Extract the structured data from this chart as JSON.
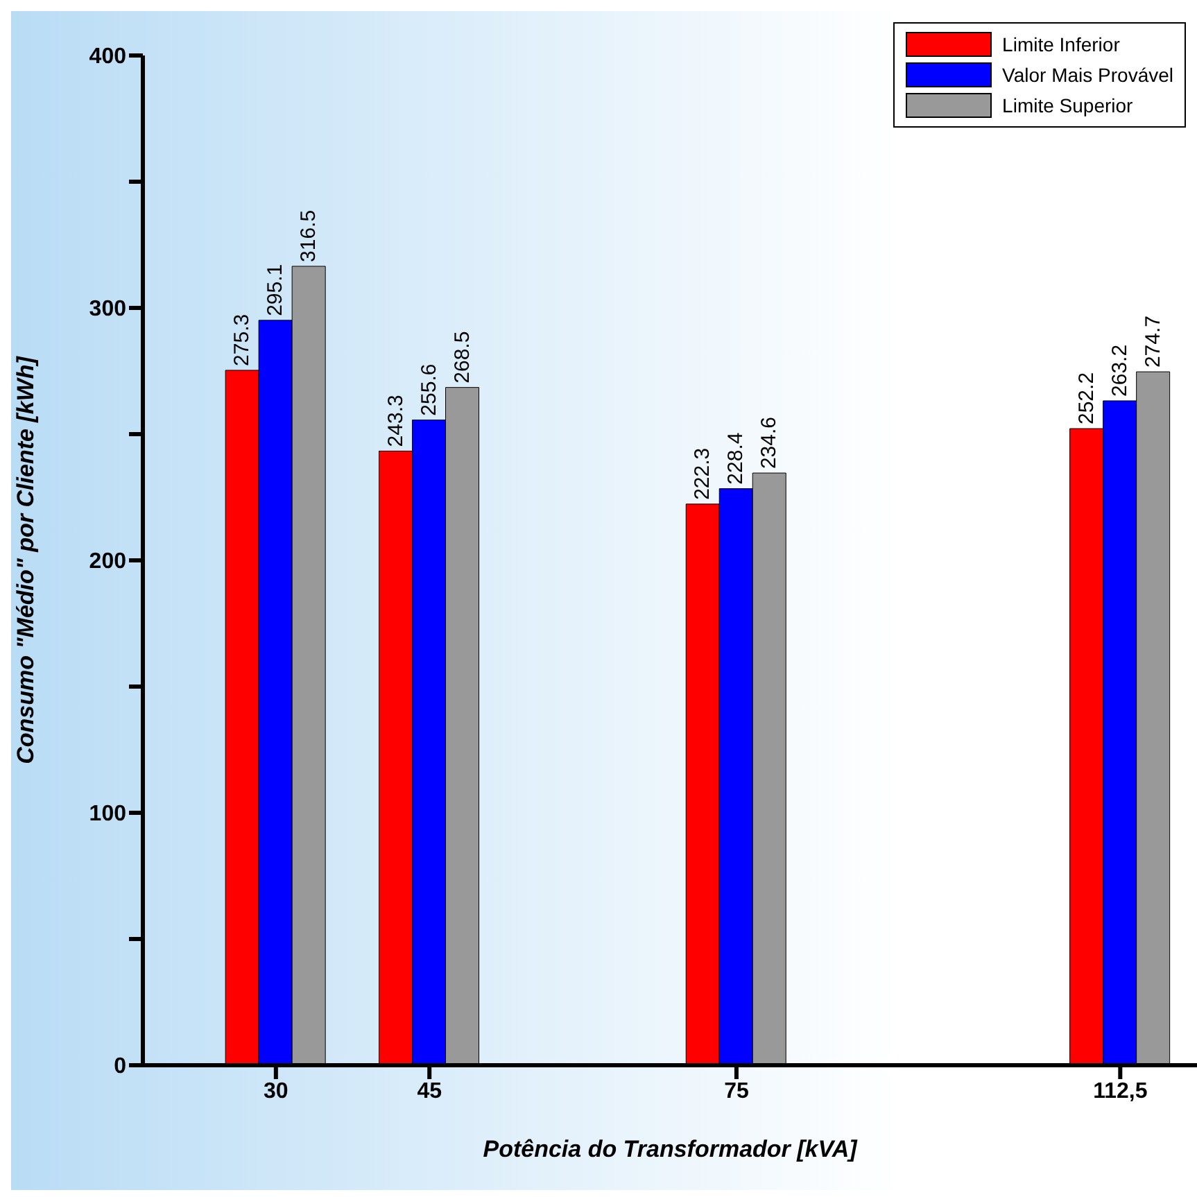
{
  "chart_data": {
    "type": "bar",
    "xlabel": "Potência do Transformador [kVA]",
    "ylabel": "Consumo \"Médio\" por Cliente [kWh]",
    "x": [
      30,
      45,
      75,
      112.5
    ],
    "series": [
      {
        "name": "Limite Inferior",
        "color": "#ff0000",
        "values": [
          275.3,
          243.3,
          222.3,
          252.2
        ]
      },
      {
        "name": "Valor Mais Provável",
        "color": "#0000ff",
        "values": [
          295.1,
          255.6,
          228.4,
          263.2
        ]
      },
      {
        "name": "Limite Superior",
        "color": "#999999",
        "values": [
          316.5,
          268.5,
          234.6,
          274.7
        ]
      }
    ],
    "xlim": [
      17,
      120
    ],
    "xticks": [
      30,
      45,
      75,
      {
        "value": 112.5,
        "label": "112,5"
      }
    ],
    "ylim": [
      0,
      400
    ],
    "yticks": [
      0,
      {
        "value": 50,
        "label": null
      },
      100,
      {
        "value": 150,
        "label": null
      },
      200,
      {
        "value": 250,
        "label": null
      },
      300,
      {
        "value": 350,
        "label": null
      },
      400
    ],
    "data_labels": true,
    "legend": "top right",
    "grid": false
  }
}
